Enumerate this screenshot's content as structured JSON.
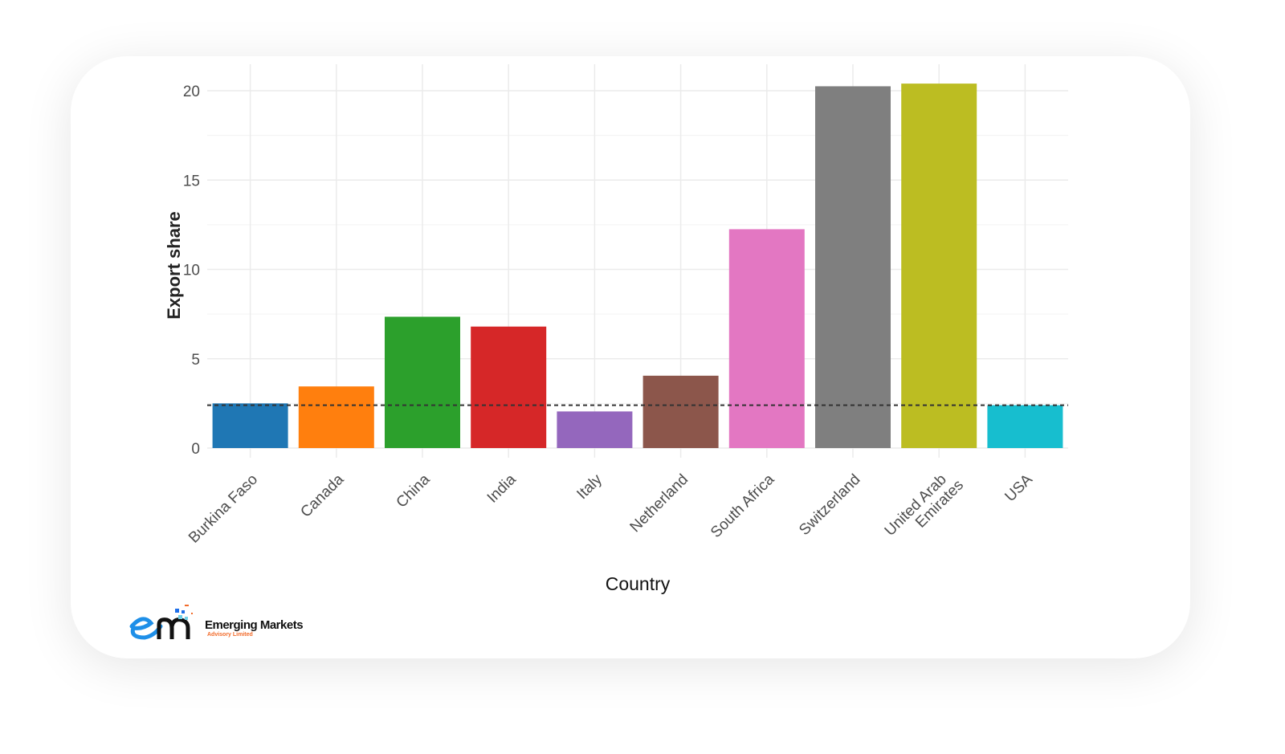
{
  "chart_data": {
    "type": "bar",
    "title": "",
    "xlabel": "Country",
    "ylabel": "Export share",
    "ylim": [
      0,
      21
    ],
    "yticks": [
      "0",
      "5",
      "10",
      "15",
      "20"
    ],
    "grid": true,
    "categories": [
      "Burkina Faso",
      "Canada",
      "China",
      "India",
      "Italy",
      "Netherland",
      "South Africa",
      "Switzerland",
      "United Arab Emirates",
      "USA"
    ],
    "values": [
      2.5,
      3.45,
      7.35,
      6.8,
      2.05,
      4.05,
      12.25,
      20.25,
      20.4,
      2.4
    ],
    "colors": [
      "#1f77b4",
      "#ff7f0e",
      "#2ca02c",
      "#d62728",
      "#9467bd",
      "#8c564b",
      "#e377c2",
      "#7f7f7f",
      "#bcbd22",
      "#17becf"
    ],
    "reference_line": {
      "value": 2.4,
      "style": "dashed"
    }
  },
  "logo": {
    "name": "Emerging Markets",
    "tagline": "Advisory Limited"
  }
}
